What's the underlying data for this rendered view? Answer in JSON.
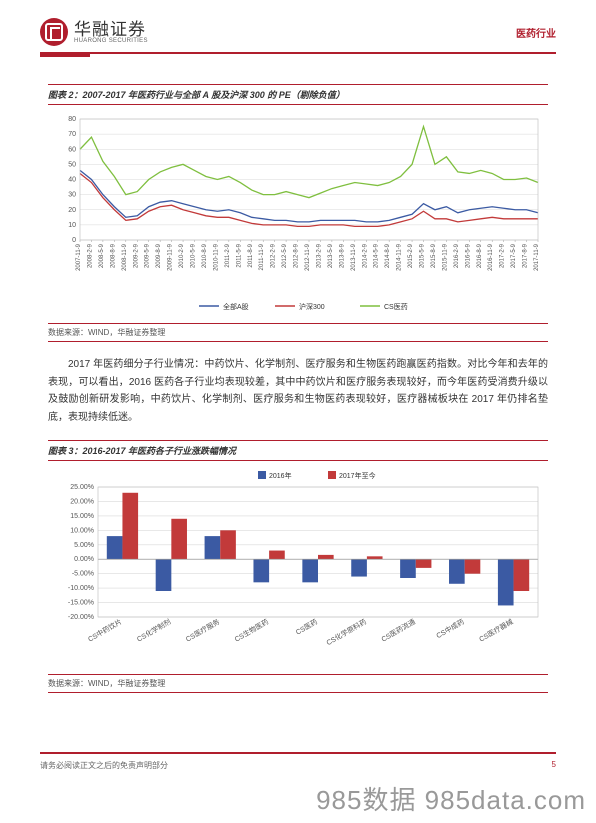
{
  "header": {
    "brand_cn": "华融证券",
    "brand_en": "HUARONG SECURITIES",
    "industry": "医药行业"
  },
  "chart2": {
    "title": "图表 2：2007-2017 年医药行业与全部 A 股及沪深 300 的 PE（剔除负值）",
    "source": "数据来源：WIND，华融证券整理",
    "type": "line",
    "ylim": [
      0,
      80
    ],
    "ytick_step": 10,
    "yticks": [
      0,
      10,
      20,
      30,
      40,
      50,
      60,
      70,
      80
    ],
    "x_labels": [
      "2007-11-9",
      "2008-2-9",
      "2008-5-9",
      "2008-8-9",
      "2008-11-9",
      "2009-2-9",
      "2009-5-9",
      "2009-8-9",
      "2009-11-9",
      "2010-2-9",
      "2010-5-9",
      "2010-8-9",
      "2010-11-9",
      "2011-2-9",
      "2011-5-9",
      "2011-8-9",
      "2011-11-9",
      "2012-2-9",
      "2012-5-9",
      "2012-8-9",
      "2012-11-9",
      "2013-2-9",
      "2013-5-9",
      "2013-8-9",
      "2013-11-9",
      "2014-2-9",
      "2014-5-9",
      "2014-8-9",
      "2014-11-9",
      "2015-2-9",
      "2015-5-9",
      "2015-8-9",
      "2015-11-9",
      "2016-2-9",
      "2016-5-9",
      "2016-8-9",
      "2016-11-9",
      "2017-2-9",
      "2017-5-9",
      "2017-8-9",
      "2017-11-9"
    ],
    "series": [
      {
        "name": "全部A股",
        "color": "#3b5aa3",
        "values": [
          46,
          40,
          30,
          22,
          15,
          16,
          22,
          25,
          26,
          24,
          22,
          20,
          19,
          20,
          18,
          15,
          14,
          13,
          13,
          12,
          12,
          13,
          13,
          13,
          13,
          12,
          12,
          13,
          15,
          17,
          24,
          20,
          22,
          18,
          20,
          21,
          22,
          21,
          20,
          20,
          18
        ]
      },
      {
        "name": "沪深300",
        "color": "#c23a3a",
        "values": [
          44,
          38,
          28,
          20,
          13,
          14,
          19,
          22,
          23,
          20,
          18,
          16,
          15,
          15,
          13,
          11,
          10,
          10,
          10,
          9,
          9,
          10,
          10,
          10,
          9,
          9,
          9,
          10,
          12,
          14,
          19,
          14,
          14,
          12,
          13,
          14,
          15,
          14,
          14,
          14,
          14
        ]
      },
      {
        "name": "CS医药",
        "color": "#7fbf3f",
        "values": [
          60,
          68,
          52,
          42,
          30,
          32,
          40,
          45,
          48,
          50,
          46,
          42,
          40,
          42,
          38,
          33,
          30,
          30,
          32,
          30,
          28,
          31,
          34,
          36,
          38,
          37,
          36,
          38,
          42,
          50,
          75,
          50,
          55,
          45,
          44,
          46,
          44,
          40,
          40,
          41,
          38
        ]
      }
    ],
    "grid_color": "#d9d9d9",
    "background": "#ffffff",
    "label_fontsize": 6,
    "legend_fontsize": 7
  },
  "body_paragraph": "2017 年医药细分子行业情况：中药饮片、化学制剂、医疗服务和生物医药跑赢医药指数。对比今年和去年的表现，可以看出，2016 医药各子行业均表现较差，其中中药饮片和医疗服务表现较好，而今年医药受消费升级以及鼓励创新研发影响，中药饮片、化学制剂、医疗服务和生物医药表现较好，医疗器械板块在 2017 年仍排名垫底，表现持续低迷。",
  "chart3": {
    "title": "图表 3：2016-2017 年医药各子行业涨跌幅情况",
    "source": "数据来源：WIND，华融证券整理",
    "type": "bar",
    "ylim": [
      -20,
      25
    ],
    "yticks": [
      -20,
      -15,
      -10,
      -5,
      0,
      5,
      10,
      15,
      20,
      25
    ],
    "ytick_labels": [
      "-20.00%",
      "-15.00%",
      "-10.00%",
      "-5.00%",
      "0.00%",
      "5.00%",
      "10.00%",
      "15.00%",
      "20.00%",
      "25.00%"
    ],
    "categories": [
      "CS中药饮片",
      "CS化学制剂",
      "CS医疗服务",
      "CS生物医药",
      "CS医药",
      "CS化学原料药",
      "CS医药流通",
      "CS中成药",
      "CS医疗器械"
    ],
    "series": [
      {
        "name": "2016年",
        "color": "#3b5aa3",
        "values": [
          8.0,
          -11.0,
          8.0,
          -8.0,
          -8.0,
          -6.0,
          -6.5,
          -8.5,
          -16.0
        ]
      },
      {
        "name": "2017年至今",
        "color": "#c23a3a",
        "values": [
          23.0,
          14.0,
          10.0,
          3.0,
          1.5,
          1.0,
          -3.0,
          -5.0,
          -11.0
        ]
      }
    ],
    "grid_color": "#d9d9d9",
    "background": "#ffffff",
    "bar_width": 0.32,
    "label_fontsize": 6,
    "legend_fontsize": 7
  },
  "footer": {
    "disclaimer": "请务必阅读正文之后的免责声明部分",
    "page": "5"
  },
  "watermark": "985数据 985data.com"
}
